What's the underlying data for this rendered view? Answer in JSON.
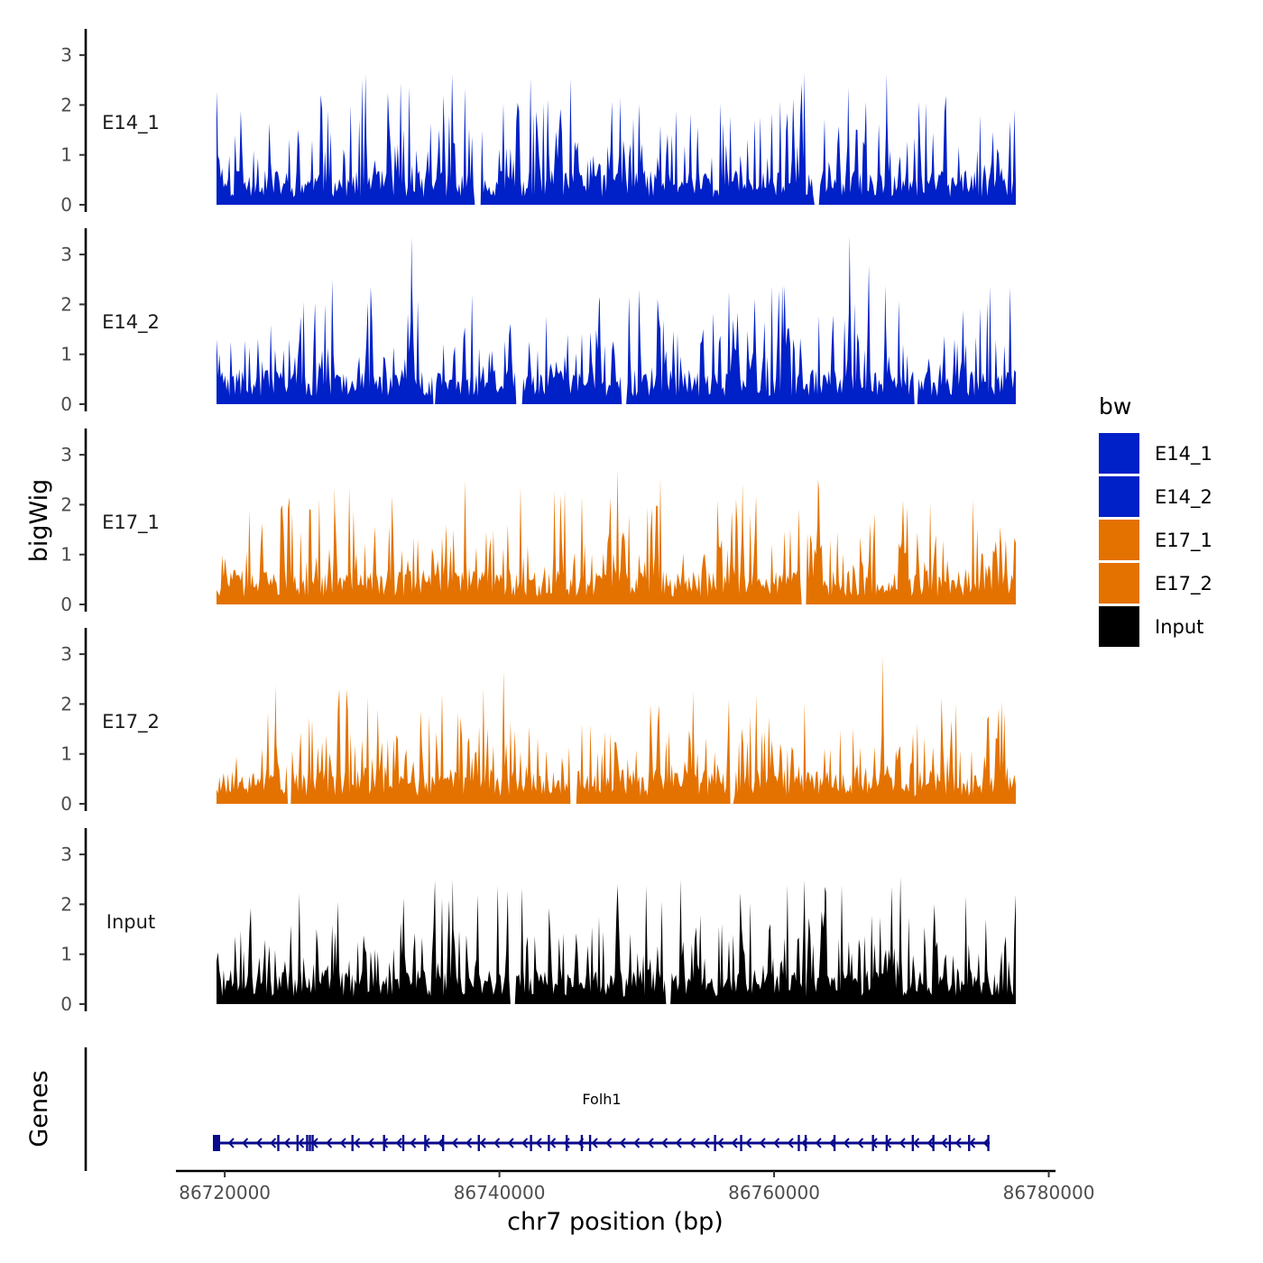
{
  "chart_data": {
    "type": "area",
    "ylabel": "bigWig",
    "xlabel": "chr7 position (bp)",
    "xlim": [
      86719400,
      86777600
    ],
    "x_range_data": [
      86719400,
      86777600
    ],
    "x_ticks": [
      86720000,
      86740000,
      86760000,
      86780000
    ],
    "x_tick_labels": [
      "86720000",
      "86740000",
      "86760000",
      "86780000"
    ],
    "ylim": [
      0,
      3.5
    ],
    "y_ticks": [
      0,
      1,
      2,
      3
    ],
    "y_tick_labels": [
      "0",
      "1",
      "2",
      "3"
    ],
    "tracks": [
      {
        "name": "E14_1",
        "color": "#0020c8",
        "seed": 11,
        "peaks": [
          [
            86719430,
            2.28
          ],
          [
            86730250,
            2.62
          ],
          [
            86736550,
            2.63
          ],
          [
            86748800,
            2.15
          ],
          [
            86762200,
            2.65
          ],
          [
            86765400,
            2.35
          ],
          [
            86768200,
            2.62
          ],
          [
            86777500,
            1.9
          ]
        ],
        "gaps": [
          [
            86738200,
            86738700
          ],
          [
            86762900,
            86763300
          ]
        ]
      },
      {
        "name": "E14_2",
        "color": "#0020c8",
        "seed": 23,
        "peaks": [
          [
            86719430,
            1.3
          ],
          [
            86727300,
            1.98
          ],
          [
            86733600,
            3.35
          ],
          [
            86747300,
            2.15
          ],
          [
            86760600,
            2.4
          ],
          [
            86765500,
            3.38
          ],
          [
            86766900,
            2.78
          ],
          [
            86768100,
            2.38
          ]
        ],
        "gaps": [
          [
            86735100,
            86735400
          ],
          [
            86741200,
            86741700
          ],
          [
            86748900,
            86749300
          ],
          [
            86770200,
            86770500
          ]
        ]
      },
      {
        "name": "E17_1",
        "color": "#e47200",
        "seed": 37,
        "peaks": [
          [
            86728000,
            2.35
          ],
          [
            86737500,
            2.5
          ],
          [
            86744000,
            2.28
          ],
          [
            86748600,
            2.68
          ],
          [
            86757700,
            2.42
          ],
          [
            86763200,
            2.5
          ]
        ],
        "gaps": [
          [
            86762000,
            86762400
          ]
        ]
      },
      {
        "name": "E17_2",
        "color": "#e47200",
        "seed": 53,
        "peaks": [
          [
            86723700,
            2.38
          ],
          [
            86730400,
            2.15
          ],
          [
            86740300,
            2.65
          ],
          [
            86754100,
            2.28
          ],
          [
            86758700,
            2.18
          ],
          [
            86767900,
            2.95
          ]
        ],
        "gaps": [
          [
            86724500,
            86724900
          ],
          [
            86745100,
            86745600
          ],
          [
            86756800,
            86757100
          ]
        ]
      },
      {
        "name": "Input",
        "color": "#000000",
        "seed": 71,
        "peaks": [
          [
            86735300,
            2.48
          ],
          [
            86736600,
            2.5
          ],
          [
            86748600,
            2.4
          ],
          [
            86753200,
            2.5
          ],
          [
            86763700,
            2.35
          ],
          [
            86769200,
            2.55
          ]
        ],
        "gaps": [
          [
            86740800,
            86741200
          ],
          [
            86752100,
            86752500
          ]
        ]
      }
    ],
    "legend": {
      "title": "bw",
      "entries": [
        {
          "label": "E14_1",
          "color": "#0020c8"
        },
        {
          "label": "E14_2",
          "color": "#0020c8"
        },
        {
          "label": "E17_1",
          "color": "#e47200"
        },
        {
          "label": "E17_2",
          "color": "#e47200"
        },
        {
          "label": "Input",
          "color": "#000000"
        }
      ]
    },
    "genes_track": {
      "title": "Genes",
      "gene": "Folh1",
      "strand": "-",
      "color": "#0a0a8c",
      "start": 86719400,
      "end": 86775700,
      "exons": [
        86719400,
        86719550,
        86723900,
        86725300,
        86726000,
        86726200,
        86726400,
        86729300,
        86731600,
        86733000,
        86734600,
        86735900,
        86738500,
        86742300,
        86743600,
        86744900,
        86746000,
        86746600,
        86755700,
        86757600,
        86761800,
        86762300,
        86764400,
        86767200,
        86768200,
        86770100,
        86771600,
        86772800,
        86774200,
        86775600
      ]
    }
  }
}
